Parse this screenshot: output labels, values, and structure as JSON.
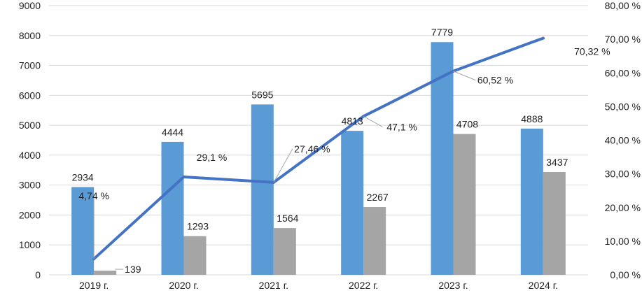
{
  "chart_data": {
    "type": "bar",
    "categories": [
      "2019 г.",
      "2020 г.",
      "2021 г.",
      "2022 г.",
      "2023 г.",
      "2024 г."
    ],
    "series": [
      {
        "type": "bar",
        "axis": "left",
        "color": "#5b9bd5",
        "values": [
          2934,
          4444,
          5695,
          4813,
          7779,
          4888
        ],
        "labels": [
          "2934",
          "4444",
          "5695",
          "4813",
          "7779",
          "4888"
        ]
      },
      {
        "type": "bar",
        "axis": "left",
        "color": "#a5a5a5",
        "values": [
          139,
          1293,
          1564,
          2267,
          4708,
          3437
        ],
        "labels": [
          "139",
          "1293",
          "1564",
          "2267",
          "4708",
          "3437"
        ]
      },
      {
        "type": "line",
        "axis": "right",
        "color": "#4472c4",
        "values": [
          4.74,
          29.1,
          27.46,
          47.1,
          60.52,
          70.32
        ],
        "labels": [
          "4,74 %",
          "29,1 %",
          "27,46 %",
          "47,1 %",
          "60,52 %",
          "70,32 %"
        ]
      }
    ],
    "y_left": {
      "range": [
        0,
        9000
      ],
      "ticks": [
        0,
        1000,
        2000,
        3000,
        4000,
        5000,
        6000,
        7000,
        8000,
        9000
      ],
      "tick_labels": [
        "0",
        "1000",
        "2000",
        "3000",
        "4000",
        "5000",
        "6000",
        "7000",
        "8000",
        "9000"
      ]
    },
    "y_right": {
      "range": [
        0,
        80
      ],
      "ticks": [
        0,
        10,
        20,
        30,
        40,
        50,
        60,
        70,
        80
      ],
      "tick_labels": [
        "0,00 %",
        "10,00 %",
        "20,00 %",
        "30,00 %",
        "40,00 %",
        "50,00 %",
        "60,00 %",
        "70,00 %",
        "80,00 %"
      ]
    },
    "grid": true,
    "legend": "none"
  }
}
